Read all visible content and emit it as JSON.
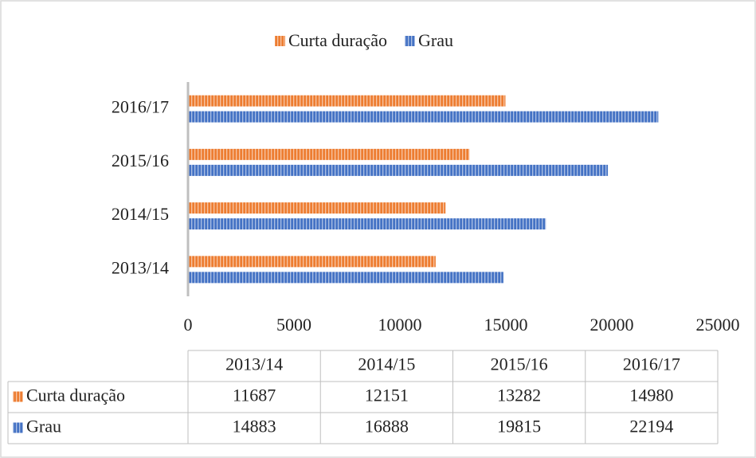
{
  "chart_data": {
    "type": "bar",
    "orientation": "horizontal",
    "categories": [
      "2013/14",
      "2014/15",
      "2015/16",
      "2016/17"
    ],
    "series": [
      {
        "name": "Curta duração",
        "color": "#ed7d31",
        "values": [
          11687,
          12151,
          13282,
          14980
        ]
      },
      {
        "name": "Grau",
        "color": "#4472c4",
        "values": [
          14883,
          16888,
          19815,
          22194
        ]
      }
    ],
    "xlim": [
      0,
      25000
    ],
    "xticks": [
      0,
      5000,
      10000,
      15000,
      20000,
      25000
    ],
    "legend": "top",
    "data_table": true
  }
}
